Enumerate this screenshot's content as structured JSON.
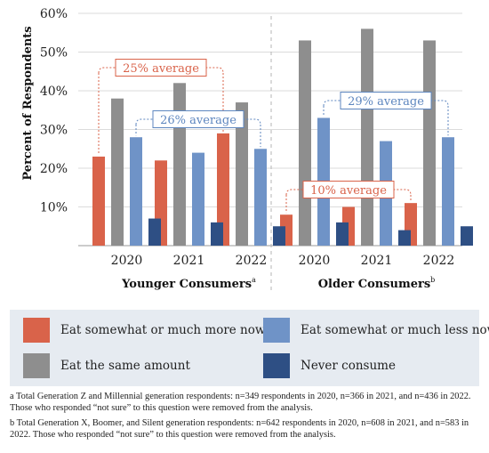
{
  "chart_data": {
    "type": "bar",
    "ylabel": "Percent of Respondents",
    "ylim": [
      0,
      60
    ],
    "yticks": [
      "10%",
      "20%",
      "30%",
      "40%",
      "50%",
      "60%"
    ],
    "groups": [
      {
        "label": "Younger Consumers",
        "superscript": "a",
        "categories": [
          "2020",
          "2021",
          "2022"
        ]
      },
      {
        "label": "Older Consumers",
        "superscript": "b",
        "categories": [
          "2020",
          "2021",
          "2022"
        ]
      }
    ],
    "series": [
      {
        "name": "Eat somewhat or much more now",
        "color": "#d9634a",
        "values": [
          23,
          22,
          29,
          8,
          10,
          11
        ]
      },
      {
        "name": "Eat the same amount",
        "color": "#8e8e8e",
        "values": [
          38,
          42,
          37,
          53,
          56,
          53
        ]
      },
      {
        "name": "Eat somewhat or much less now",
        "color": "#6f93c7",
        "values": [
          28,
          24,
          25,
          33,
          27,
          28
        ]
      },
      {
        "name": "Never consume",
        "color": "#2e4f84",
        "values": [
          7,
          6,
          5,
          6,
          4,
          5
        ]
      }
    ],
    "annotations": [
      {
        "text": "25% average",
        "series": 0,
        "group": 0,
        "color": "#d9634a"
      },
      {
        "text": "26% average",
        "series": 2,
        "group": 0,
        "color": "#5d86bf"
      },
      {
        "text": "29% average",
        "series": 2,
        "group": 1,
        "color": "#5d86bf"
      },
      {
        "text": "10% average",
        "series": 0,
        "group": 1,
        "color": "#d9634a"
      }
    ]
  },
  "legend": [
    {
      "label": "Eat somewhat or much more now",
      "color": "#d9634a"
    },
    {
      "label": "Eat somewhat or much less now",
      "color": "#6f93c7"
    },
    {
      "label": "Eat the same amount",
      "color": "#8e8e8e"
    },
    {
      "label": "Never consume",
      "color": "#2e4f84"
    }
  ],
  "notes": {
    "a": "a Total Generation Z and Millennial generation respondents: n=349 respondents in 2020, n=366 in 2021, and n=436 in 2022. Those who responded “not sure” to this question were removed from the analysis.",
    "b": "b Total Generation X, Boomer, and Silent generation respondents: n=642 respondents in 2020, n=608 in 2021, and n=583 in 2022. Those who responded “not sure” to this question were removed from the analysis."
  }
}
